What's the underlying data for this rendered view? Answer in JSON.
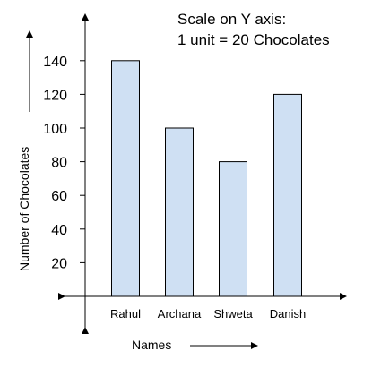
{
  "chart_data": {
    "type": "bar",
    "categories": [
      "Rahul",
      "Archana",
      "Shweta",
      "Danish"
    ],
    "values": [
      140,
      100,
      80,
      120
    ],
    "title": "",
    "xlabel": "Names",
    "ylabel": "Number of Chocolates",
    "yticks": [
      20,
      40,
      60,
      80,
      100,
      120,
      140
    ],
    "ylim": [
      0,
      160
    ],
    "grid": false,
    "scale_note": [
      "Scale on Y axis:",
      "1 unit = 20 Chocolates"
    ],
    "bar_color": "#cfe0f3",
    "bar_stroke": "#000000"
  }
}
